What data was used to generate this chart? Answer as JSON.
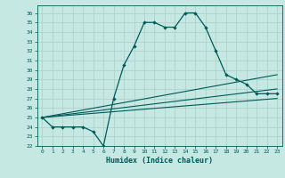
{
  "xlabel": "Humidex (Indice chaleur)",
  "background_color": "#c6e8e2",
  "grid_color": "#a8cfc8",
  "line_color": "#005858",
  "xlim": [
    -0.5,
    23.5
  ],
  "ylim": [
    22,
    36.8
  ],
  "xticks": [
    0,
    1,
    2,
    3,
    4,
    5,
    6,
    7,
    8,
    9,
    10,
    11,
    12,
    13,
    14,
    15,
    16,
    17,
    18,
    19,
    20,
    21,
    22,
    23
  ],
  "yticks": [
    22,
    23,
    24,
    25,
    26,
    27,
    28,
    29,
    30,
    31,
    32,
    33,
    34,
    35,
    36
  ],
  "main_x": [
    0,
    1,
    2,
    3,
    4,
    5,
    6,
    7,
    8,
    9,
    10,
    11,
    12,
    13,
    14,
    15,
    16,
    17,
    18,
    19,
    20,
    21,
    22,
    23
  ],
  "main_y": [
    25.0,
    24.0,
    24.0,
    24.0,
    24.0,
    23.5,
    22.0,
    27.0,
    30.5,
    32.5,
    35.0,
    35.0,
    34.5,
    34.5,
    36.0,
    36.0,
    34.5,
    32.0,
    29.5,
    29.0,
    28.5,
    27.5,
    27.5,
    27.5
  ],
  "line1_x": [
    0,
    23
  ],
  "line1_y": [
    25.0,
    29.5
  ],
  "line2_x": [
    0,
    23
  ],
  "line2_y": [
    25.0,
    28.0
  ],
  "line3_x": [
    0,
    23
  ],
  "line3_y": [
    25.0,
    27.0
  ]
}
